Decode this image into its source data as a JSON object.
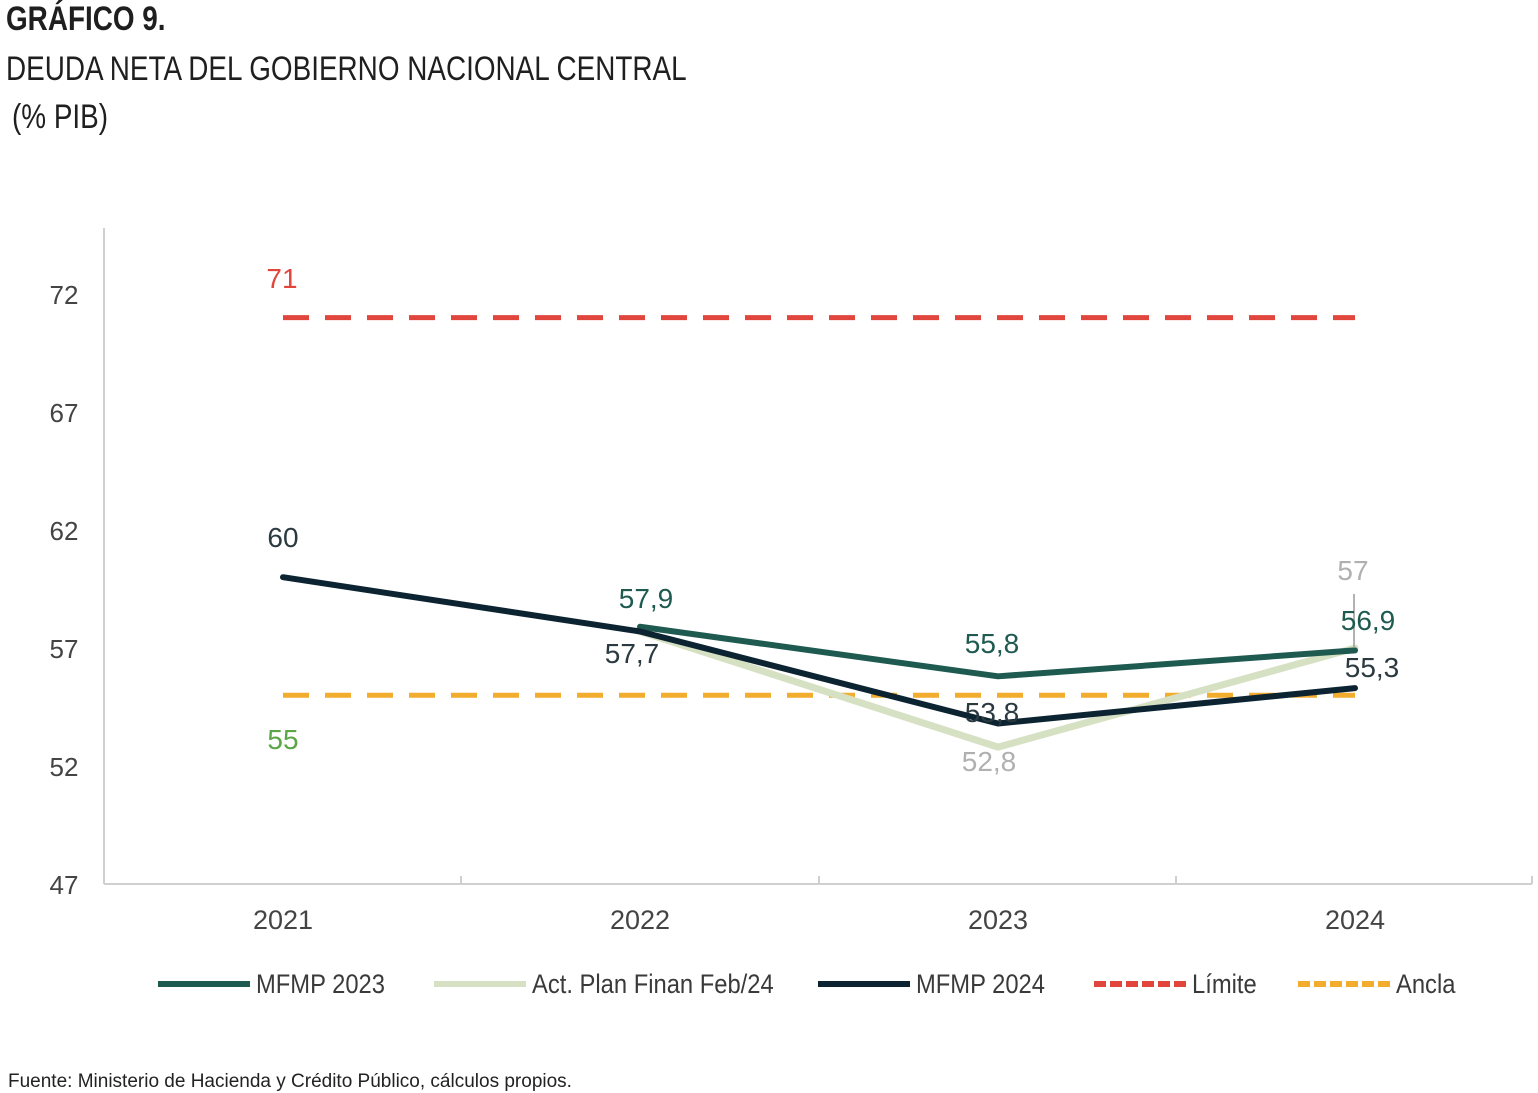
{
  "header": {
    "label": "GRÁFICO 9.",
    "title": "DEUDA NETA DEL GOBIERNO NACIONAL CENTRAL",
    "subtitle": "(% PIB)"
  },
  "chart_data": {
    "type": "line",
    "categories": [
      "2021",
      "2022",
      "2023",
      "2024"
    ],
    "ylim": [
      47,
      74
    ],
    "yticks": [
      "47",
      "52",
      "57",
      "62",
      "67",
      "72"
    ],
    "grid": false,
    "legend_position": "bottom",
    "series": [
      {
        "name": "MFMP 2023",
        "color": "#1f5a50",
        "style": "solid",
        "values": [
          null,
          57.9,
          55.8,
          56.9
        ],
        "labels": [
          null,
          "57,9",
          "55,8",
          "56,9"
        ]
      },
      {
        "name": "Act. Plan Finan Feb/24",
        "color": "#d6e0c2",
        "style": "solid",
        "values": [
          null,
          57.7,
          52.8,
          57
        ],
        "labels": [
          null,
          null,
          "52,8",
          "57"
        ]
      },
      {
        "name": "MFMP 2024",
        "color": "#0c2431",
        "style": "solid",
        "values": [
          60,
          57.7,
          53.8,
          55.3
        ],
        "labels": [
          "60",
          "57,7",
          "53,8",
          "55,3"
        ]
      },
      {
        "name": "Límite",
        "color": "#e0463c",
        "style": "dashed",
        "values": [
          71,
          71,
          71,
          71
        ],
        "labels": [
          "71",
          null,
          null,
          null
        ]
      },
      {
        "name": "Ancla",
        "color": "#f2ac2e",
        "style": "dashed",
        "values": [
          55,
          55,
          55,
          55
        ],
        "labels": [
          "55",
          null,
          null,
          null
        ]
      }
    ],
    "label_colors": {
      "limite": "#e0463c",
      "ancla": "#5aa646",
      "faded": "#b0b0b0",
      "dark": "#2b3a40"
    }
  },
  "source": "Fuente: Ministerio de Hacienda y Crédito Público, cálculos propios."
}
